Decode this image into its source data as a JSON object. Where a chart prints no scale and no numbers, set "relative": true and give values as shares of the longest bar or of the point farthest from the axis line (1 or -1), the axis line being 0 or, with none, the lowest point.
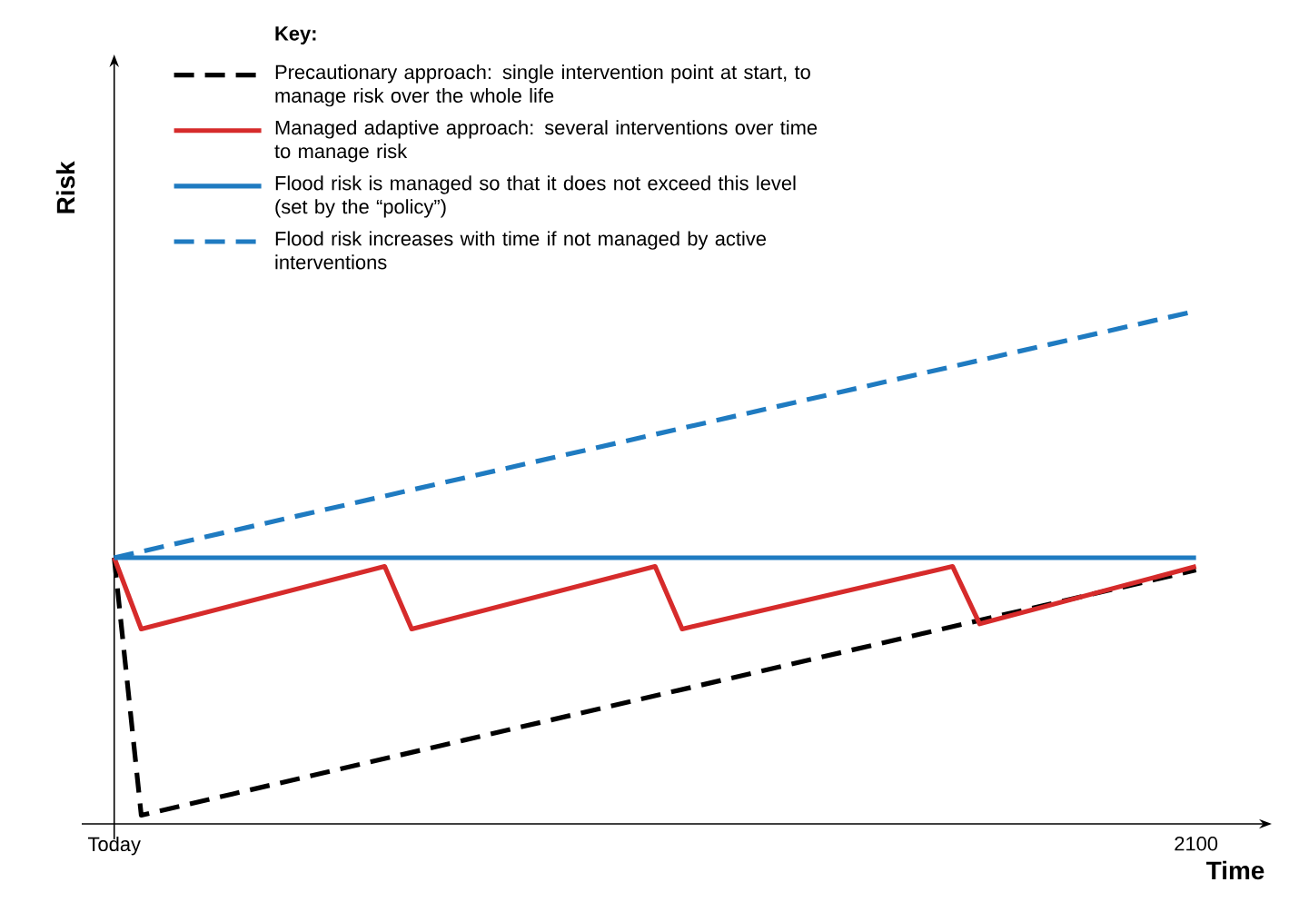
{
  "chart_data": {
    "type": "line",
    "relative": true,
    "xlabel": "Time",
    "ylabel": "Risk",
    "legend_title": "Key:",
    "legend": "top",
    "marker": "none",
    "categories": [
      "Today",
      null,
      null,
      null,
      null,
      null,
      null,
      null,
      null,
      null,
      null,
      null,
      null,
      null,
      null,
      null,
      null,
      null,
      null,
      null,
      null,
      null,
      null,
      null,
      null,
      null,
      null,
      null,
      null,
      null,
      null,
      null,
      null,
      null,
      null,
      null,
      null,
      null,
      null,
      null,
      "2100"
    ],
    "series": [
      {
        "name": "Precautionary approach: single intervention point at start, to manage risk over the whole life",
        "color": "#000000",
        "line_style": "dashed",
        "values": [
          0.519,
          0.017,
          null,
          null,
          null,
          null,
          null,
          null,
          null,
          null,
          null,
          null,
          null,
          null,
          null,
          null,
          null,
          null,
          null,
          null,
          null,
          null,
          null,
          null,
          null,
          null,
          null,
          null,
          null,
          null,
          null,
          null,
          null,
          null,
          null,
          null,
          null,
          null,
          null,
          null,
          0.495
        ]
      },
      {
        "name": "Managed adaptive approach: several interventions over time to manage risk",
        "color": "#d62b2b",
        "line_style": "solid",
        "values": [
          0.519,
          0.38,
          null,
          null,
          null,
          null,
          null,
          null,
          null,
          null,
          0.502,
          0.38,
          null,
          null,
          null,
          null,
          null,
          null,
          null,
          null,
          0.502,
          0.38,
          null,
          null,
          null,
          null,
          null,
          null,
          null,
          null,
          null,
          0.502,
          0.39,
          null,
          null,
          null,
          null,
          null,
          null,
          null,
          0.502
        ]
      },
      {
        "name": "Flood risk is managed so that it does not exceed this level (set by the “policy”)",
        "color": "#1f7bc1",
        "line_style": "solid",
        "values": [
          0.519,
          null,
          null,
          null,
          null,
          null,
          null,
          null,
          null,
          null,
          null,
          null,
          null,
          null,
          null,
          null,
          null,
          null,
          null,
          null,
          null,
          null,
          null,
          null,
          null,
          null,
          null,
          null,
          null,
          null,
          null,
          null,
          null,
          null,
          null,
          null,
          null,
          null,
          null,
          null,
          0.519
        ]
      },
      {
        "name": "Flood risk increases with time if not managed by active interventions",
        "color": "#1f7bc1",
        "line_style": "dashed",
        "values": [
          0.519,
          null,
          null,
          null,
          null,
          null,
          null,
          null,
          null,
          null,
          null,
          null,
          null,
          null,
          null,
          null,
          null,
          null,
          null,
          null,
          null,
          null,
          null,
          null,
          null,
          null,
          null,
          null,
          null,
          null,
          null,
          null,
          null,
          null,
          null,
          null,
          null,
          null,
          null,
          null,
          1
        ]
      }
    ]
  }
}
